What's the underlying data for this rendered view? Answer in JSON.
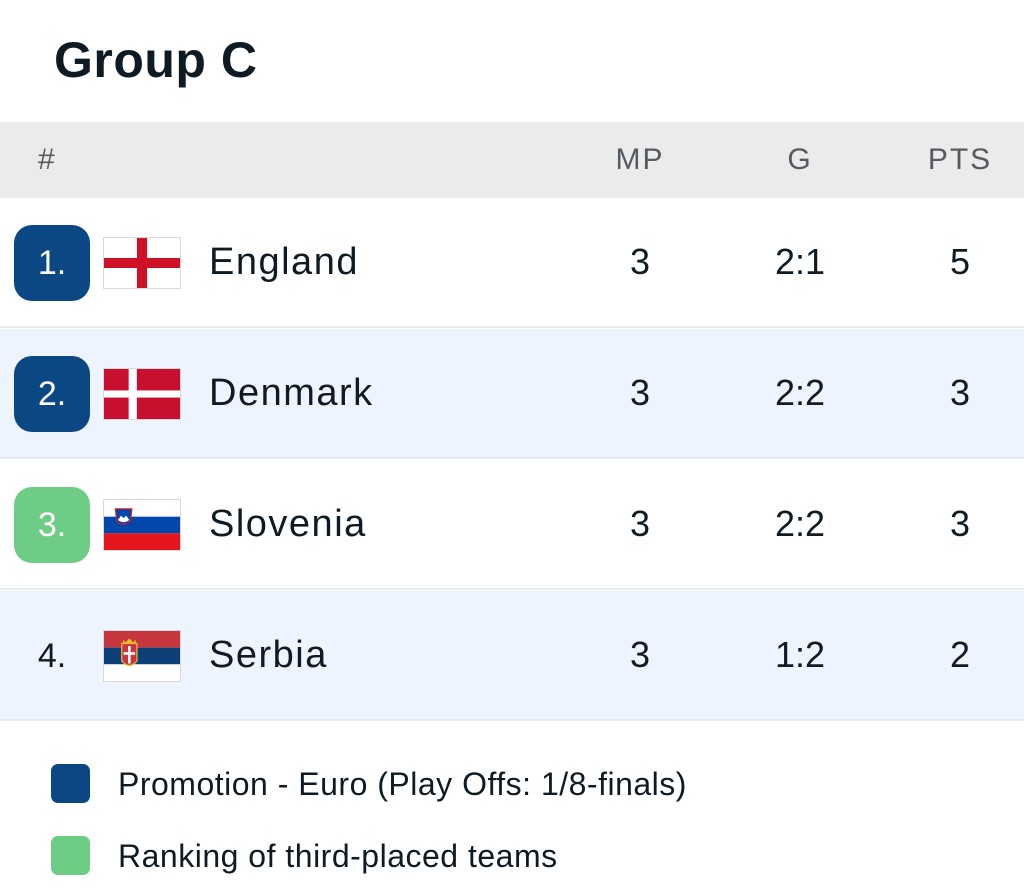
{
  "group_title": "Group C",
  "columns": {
    "rank": "#",
    "mp": "MP",
    "g": "G",
    "pts": "PTS"
  },
  "rows": [
    {
      "rank": "1.",
      "team": "England",
      "flag": "england-flag-icon",
      "mp": "3",
      "g": "2:1",
      "pts": "5",
      "status": "promotion"
    },
    {
      "rank": "2.",
      "team": "Denmark",
      "flag": "denmark-flag-icon",
      "mp": "3",
      "g": "2:2",
      "pts": "3",
      "status": "promotion"
    },
    {
      "rank": "3.",
      "team": "Slovenia",
      "flag": "slovenia-flag-icon",
      "mp": "3",
      "g": "2:2",
      "pts": "3",
      "status": "third-place"
    },
    {
      "rank": "4.",
      "team": "Serbia",
      "flag": "serbia-flag-icon",
      "mp": "3",
      "g": "1:2",
      "pts": "2",
      "status": "none"
    }
  ],
  "legend": [
    {
      "label": "Promotion - Euro (Play Offs: 1/8-finals)",
      "color": "#0a4783"
    },
    {
      "label": "Ranking of third-placed teams",
      "color": "#6ecd84"
    }
  ],
  "colors": {
    "promotion": "#0a4783",
    "third_place": "#6ecd84",
    "header_bg": "#ebebeb",
    "alt_row_bg": "#edf4fd"
  }
}
